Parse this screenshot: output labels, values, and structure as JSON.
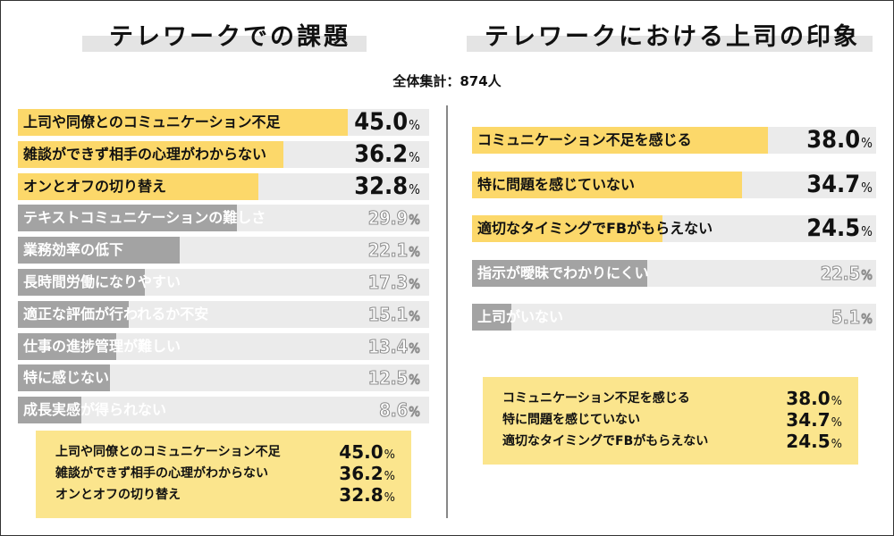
{
  "total_label": "全体集計：874人",
  "chart_data": [
    {
      "type": "bar",
      "title": "テレワークでの課題",
      "unit": "%",
      "xlim": [
        0,
        100
      ],
      "categories": [
        "上司や同僚とのコミュニケーション不足",
        "雑談ができず相手の心理がわからない",
        "オンとオフの切り替え",
        "テキストコミュニケーションの難しさ",
        "業務効率の低下",
        "長時間労働になりやすい",
        "適正な評価が行われるか不安",
        "仕事の進捗管理が難しい",
        "特に感じない",
        "成長実感が得られない"
      ],
      "values": [
        45.0,
        36.2,
        32.8,
        29.9,
        22.1,
        17.3,
        15.1,
        13.4,
        12.5,
        8.6
      ],
      "value_labels": [
        "45.0",
        "36.2",
        "32.8",
        "29.9",
        "22.1",
        "17.3",
        "15.1",
        "13.4",
        "12.5",
        "8.6"
      ],
      "highlight_count": 3,
      "colors": {
        "highlight": "#fcd86a",
        "other": "#a3a3a3",
        "track": "#ebebeb"
      },
      "summary": [
        {
          "label": "上司や同僚とのコミュニケーション不足",
          "value": "45.0"
        },
        {
          "label": "雑談ができず相手の心理がわからない",
          "value": "36.2"
        },
        {
          "label": "オンとオフの切り替え",
          "value": "32.8"
        }
      ]
    },
    {
      "type": "bar",
      "title": "テレワークにおける上司の印象",
      "unit": "%",
      "xlim": [
        0,
        100
      ],
      "categories": [
        "コミュニケーション不足を感じる",
        "特に問題を感じていない",
        "適切なタイミングでFBがもらえない",
        "指示が曖昧でわかりにくい",
        "上司がいない"
      ],
      "values": [
        38.0,
        34.7,
        24.5,
        22.5,
        5.1
      ],
      "value_labels": [
        "38.0",
        "34.7",
        "24.5",
        "22.5",
        "5.1"
      ],
      "highlight_count": 3,
      "colors": {
        "highlight": "#fcd86a",
        "other": "#a3a3a3",
        "track": "#ebebeb"
      },
      "summary": [
        {
          "label": "コミュニケーション不足を感じる",
          "value": "38.0"
        },
        {
          "label": "特に問題を感じていない",
          "value": "34.7"
        },
        {
          "label": "適切なタイミングでFBがもらえない",
          "value": "24.5"
        }
      ]
    }
  ]
}
